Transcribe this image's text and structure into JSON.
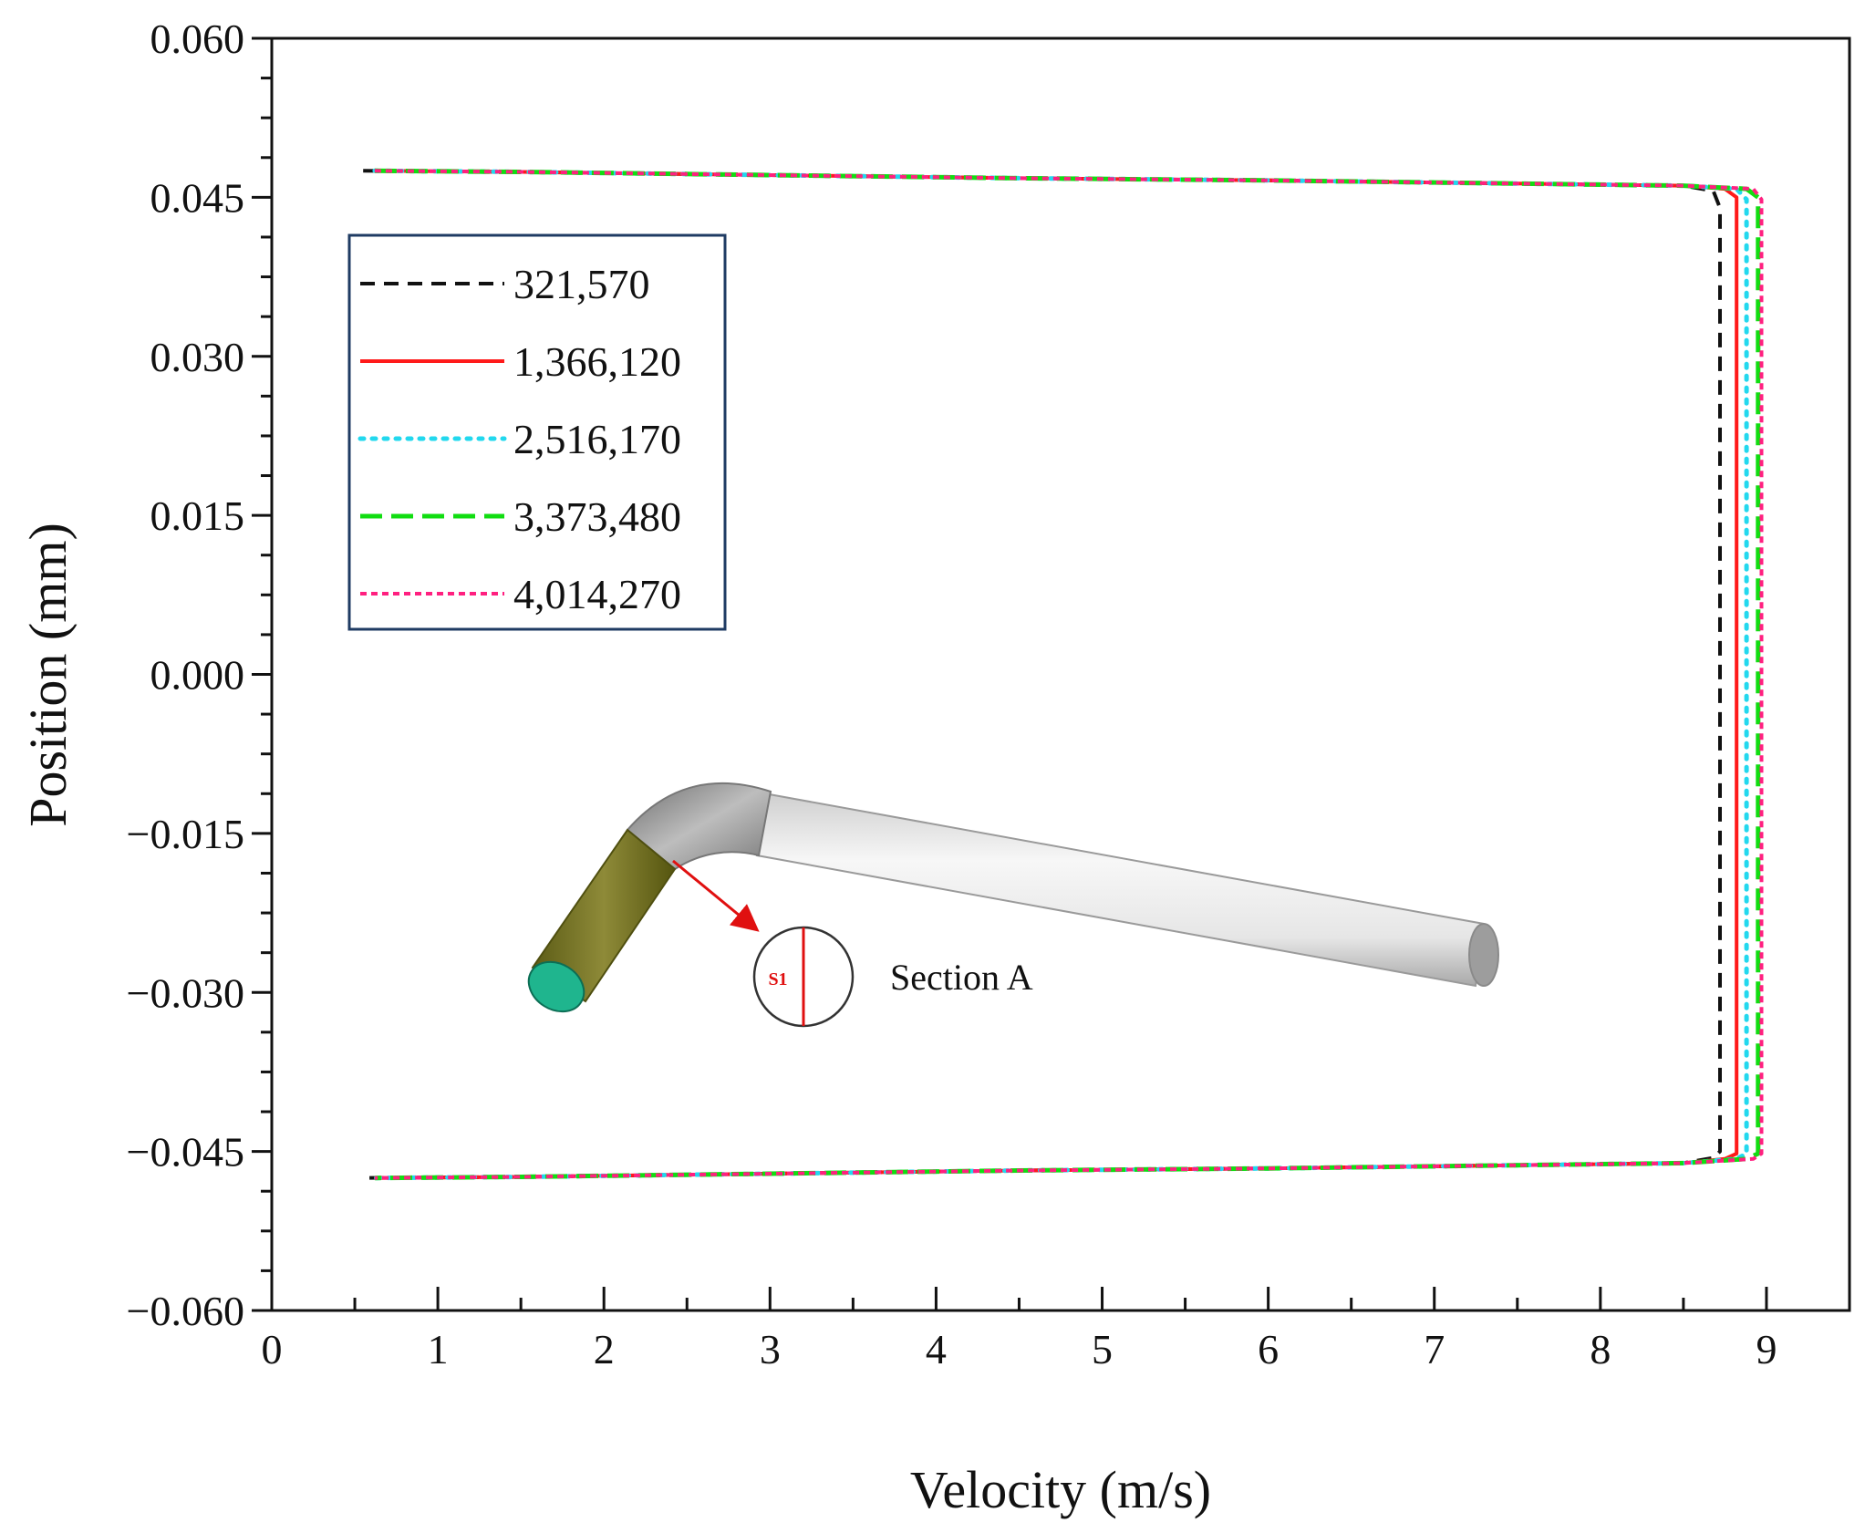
{
  "chart_data": {
    "type": "line",
    "title": "",
    "xlabel": "Velocity (m/s)",
    "ylabel": "Position (mm)",
    "xlim": [
      0,
      9.5
    ],
    "ylim": [
      -0.06,
      0.06
    ],
    "xticks": [
      0,
      1,
      2,
      3,
      4,
      5,
      6,
      7,
      8,
      9
    ],
    "xtick_labels": [
      "0",
      "1",
      "2",
      "3",
      "4",
      "5",
      "6",
      "7",
      "8",
      "9"
    ],
    "yticks": [
      0.06,
      0.045,
      0.03,
      0.015,
      0.0,
      -0.015,
      -0.03,
      -0.045,
      -0.06
    ],
    "ytick_labels": [
      "0.060",
      "0.045",
      "0.030",
      "0.015",
      "0.000",
      "−0.015",
      "−0.030",
      "−0.045",
      "−0.060"
    ],
    "legend_position": "upper-left",
    "grid": false,
    "series": [
      {
        "name": "321,570",
        "color": "#111111",
        "dash": "dash",
        "x": [
          0.55,
          1.5,
          3.0,
          4.5,
          6.0,
          7.5,
          8.5,
          8.68,
          8.72,
          8.72,
          8.72,
          8.72,
          8.72,
          8.72,
          8.68,
          8.5,
          7.5,
          6.0,
          4.5,
          3.0,
          1.5,
          0.55
        ],
        "y": [
          0.0475,
          0.0474,
          0.0471,
          0.0468,
          0.0466,
          0.0463,
          0.0461,
          0.0456,
          0.044,
          0.03,
          0.0,
          -0.03,
          -0.0435,
          -0.045,
          -0.0456,
          -0.0461,
          -0.0463,
          -0.0466,
          -0.0468,
          -0.0471,
          -0.0474,
          -0.0475
        ]
      },
      {
        "name": "1,366,120",
        "color": "#ff1a1a",
        "dash": "solid",
        "x": [
          0.62,
          1.5,
          3.0,
          4.5,
          6.0,
          7.5,
          8.5,
          8.75,
          8.82,
          8.82,
          8.82,
          8.82,
          8.82,
          8.82,
          8.75,
          8.5,
          7.5,
          6.0,
          4.5,
          3.0,
          1.5,
          0.62
        ],
        "y": [
          0.0475,
          0.0474,
          0.0471,
          0.0468,
          0.0466,
          0.0463,
          0.0461,
          0.0458,
          0.045,
          0.03,
          0.0,
          -0.03,
          -0.0445,
          -0.0452,
          -0.0457,
          -0.0461,
          -0.0463,
          -0.0466,
          -0.0468,
          -0.0471,
          -0.0474,
          -0.0475
        ]
      },
      {
        "name": "2,516,170",
        "color": "#22d8ee",
        "dash": "dot",
        "x": [
          0.62,
          1.5,
          3.0,
          4.5,
          6.0,
          7.5,
          8.5,
          8.82,
          8.88,
          8.88,
          8.88,
          8.88,
          8.88,
          8.88,
          8.82,
          8.5,
          7.5,
          6.0,
          4.5,
          3.0,
          1.5,
          0.62
        ],
        "y": [
          0.0475,
          0.0474,
          0.0471,
          0.0468,
          0.0466,
          0.0463,
          0.0461,
          0.0458,
          0.0448,
          0.03,
          0.0,
          -0.03,
          -0.0445,
          -0.0452,
          -0.0457,
          -0.0461,
          -0.0463,
          -0.0466,
          -0.0468,
          -0.0471,
          -0.0474,
          -0.0475
        ]
      },
      {
        "name": "3,373,480",
        "color": "#11dd11",
        "dash": "longdash",
        "x": [
          0.62,
          1.5,
          3.0,
          4.5,
          6.0,
          7.5,
          8.5,
          8.88,
          8.95,
          8.95,
          8.95,
          8.95,
          8.95,
          8.95,
          8.88,
          8.5,
          7.5,
          6.0,
          4.5,
          3.0,
          1.5,
          0.62
        ],
        "y": [
          0.0475,
          0.0474,
          0.0471,
          0.0468,
          0.0466,
          0.0463,
          0.0461,
          0.0458,
          0.045,
          0.03,
          0.0,
          -0.03,
          -0.0445,
          -0.0452,
          -0.0457,
          -0.0461,
          -0.0463,
          -0.0466,
          -0.0468,
          -0.0471,
          -0.0474,
          -0.0475
        ]
      },
      {
        "name": "4,014,270",
        "color": "#ff2080",
        "dash": "shortdash",
        "x": [
          0.62,
          1.5,
          3.0,
          4.5,
          6.0,
          7.5,
          8.5,
          8.92,
          8.97,
          8.97,
          8.97,
          8.97,
          8.97,
          8.97,
          8.92,
          8.5,
          7.5,
          6.0,
          4.5,
          3.0,
          1.5,
          0.62
        ],
        "y": [
          0.0475,
          0.0474,
          0.0471,
          0.0468,
          0.0466,
          0.0463,
          0.0461,
          0.0458,
          0.0448,
          0.03,
          0.0,
          -0.03,
          -0.0443,
          -0.0452,
          -0.0457,
          -0.0461,
          -0.0463,
          -0.0466,
          -0.0468,
          -0.0471,
          -0.0474,
          -0.0475
        ]
      }
    ],
    "annotations": {
      "inset_label": "Section A",
      "section_marker": "S1"
    }
  }
}
